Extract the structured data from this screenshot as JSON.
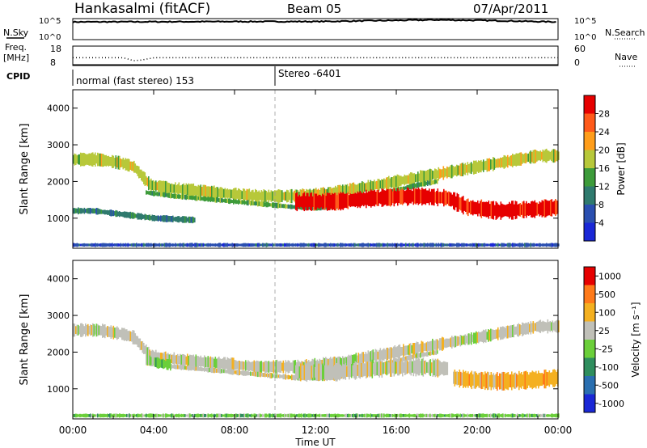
{
  "header": {
    "station": "Hankasalmi (fitACF)",
    "beam": "Beam 05",
    "date": "07/Apr/2011"
  },
  "top_panels": {
    "nsky_label": "N.Sky",
    "nsearch_label": "N.Search",
    "count_ticks": [
      "10^5",
      "10^0"
    ],
    "freq_label": "Freq.",
    "freq_unit": "[MHz]",
    "freq_ticks": [
      "18",
      "8"
    ],
    "nave_label": "Nave",
    "nave_ticks": [
      "60",
      "0"
    ],
    "cpid_label": "CPID",
    "cpid_segments": [
      "normal (fast stereo) 153",
      "Stereo -6401"
    ]
  },
  "chart_data": [
    {
      "type": "heatmap",
      "name": "power",
      "ylabel": "Slant Range [km]",
      "yticks": [
        "1000",
        "2000",
        "3000",
        "4000"
      ],
      "ylim": [
        180,
        4500
      ],
      "xlim": [
        "00:00",
        "24:00"
      ],
      "colorbar": {
        "label": "Power [dB]",
        "ticks": [
          "4",
          "8",
          "12",
          "16",
          "20",
          "24",
          "28"
        ],
        "colors": [
          "#1a28d6",
          "#2a4fb0",
          "#2f7a6e",
          "#3d9b3a",
          "#b7c83a",
          "#ff9d1a",
          "#ff5a1a",
          "#e60000"
        ]
      },
      "bands": [
        {
          "x": [
            0,
            1.2,
            2.4,
            3.0,
            3.8,
            5.0,
            7.0,
            9.0,
            11.0,
            13.0,
            15.0,
            17.0,
            19.0,
            21.0,
            23.0,
            24.0
          ],
          "y": [
            2600,
            2600,
            2500,
            2400,
            1900,
            1800,
            1700,
            1600,
            1600,
            1700,
            1900,
            2100,
            2300,
            2500,
            2700,
            2700
          ],
          "width": 300,
          "level": 4
        },
        {
          "x": [
            3.6,
            5.0,
            7.0,
            9.0,
            11.0,
            12.0,
            13.0,
            14.0,
            15.5,
            17.0,
            18.0
          ],
          "y": [
            1700,
            1600,
            1500,
            1400,
            1300,
            1280,
            1300,
            1450,
            1700,
            1900,
            2000
          ],
          "width": 120,
          "level": 3
        },
        {
          "x": [
            11.0,
            13.0,
            15.0,
            17.0,
            18.5,
            19.5,
            21.0,
            23.0,
            24.0
          ],
          "y": [
            1450,
            1450,
            1550,
            1600,
            1550,
            1300,
            1200,
            1250,
            1300
          ],
          "width": 400,
          "level": 7
        },
        {
          "x": [
            0,
            1.0,
            2.5,
            4.0,
            6.0
          ],
          "y": [
            1200,
            1200,
            1100,
            1000,
            950
          ],
          "width": 150,
          "level": 2
        },
        {
          "x": [
            0,
            4.0,
            8.0,
            12.0,
            16.0,
            20.0,
            24.0
          ],
          "y": [
            270,
            270,
            270,
            270,
            270,
            270,
            270
          ],
          "width": 90,
          "level": 1
        }
      ]
    },
    {
      "type": "heatmap",
      "name": "velocity",
      "ylabel": "Slant Range [km]",
      "yticks": [
        "1000",
        "2000",
        "3000",
        "4000"
      ],
      "ylim": [
        180,
        4500
      ],
      "xlim": [
        "00:00",
        "24:00"
      ],
      "xticks": [
        "00:00",
        "04:00",
        "08:00",
        "12:00",
        "16:00",
        "20:00",
        "00:00"
      ],
      "xlabel": "Time UT",
      "colorbar": {
        "label": "Velocity [m s⁻¹]",
        "ticks": [
          "1000",
          "500",
          "100",
          "25",
          "-25",
          "-100",
          "-500",
          "-1000"
        ],
        "colors": [
          "#1a28d6",
          "#2a6fb0",
          "#2f8e5e",
          "#6bcf3a",
          "#c0c0b8",
          "#f4b020",
          "#ff7a1a",
          "#e60000"
        ]
      },
      "bands": [
        {
          "x": [
            0,
            1.2,
            2.4,
            3.0,
            3.8,
            5.0,
            7.0,
            9.0,
            11.0,
            13.0,
            15.0,
            17.0,
            19.0,
            21.0,
            23.0,
            24.0
          ],
          "y": [
            2600,
            2600,
            2500,
            2400,
            1900,
            1800,
            1700,
            1600,
            1600,
            1700,
            1900,
            2100,
            2300,
            2500,
            2700,
            2700
          ],
          "width": 300,
          "level": 4
        },
        {
          "x": [
            3.6,
            5.0,
            7.0,
            9.0,
            11.0,
            12.0,
            13.0,
            14.0,
            15.5,
            17.0,
            18.0
          ],
          "y": [
            1700,
            1600,
            1500,
            1400,
            1300,
            1280,
            1300,
            1450,
            1700,
            1900,
            2000
          ],
          "width": 120,
          "level": 4
        },
        {
          "x": [
            11.0,
            13.0,
            15.0,
            17.0,
            18.5
          ],
          "y": [
            1450,
            1450,
            1550,
            1600,
            1550
          ],
          "width": 400,
          "level": 4
        },
        {
          "x": [
            18.8,
            19.5,
            21.0,
            23.0,
            24.0
          ],
          "y": [
            1300,
            1250,
            1200,
            1250,
            1300
          ],
          "width": 400,
          "level": 5
        },
        {
          "x": [
            3.6,
            4.2,
            4.8
          ],
          "y": [
            1800,
            1700,
            1650
          ],
          "width": 250,
          "level": 3
        },
        {
          "x": [
            0,
            4.0,
            8.0,
            12.0,
            16.0,
            20.0,
            24.0
          ],
          "y": [
            270,
            270,
            270,
            270,
            270,
            270,
            270
          ],
          "width": 90,
          "level": 3
        }
      ]
    }
  ],
  "time_series": {
    "xlim": [
      0,
      24
    ],
    "nsky_log10": [
      [
        0,
        4.2
      ],
      [
        4,
        4.25
      ],
      [
        8,
        4.3
      ],
      [
        12,
        4.3
      ],
      [
        15,
        4.5
      ],
      [
        18,
        4.7
      ],
      [
        21,
        4.5
      ],
      [
        24,
        4.2
      ]
    ],
    "freq_mhz": [
      [
        0,
        12
      ],
      [
        2.5,
        12
      ],
      [
        3,
        10.5
      ],
      [
        3.4,
        10.8
      ],
      [
        4,
        12
      ],
      [
        24,
        12
      ]
    ]
  }
}
